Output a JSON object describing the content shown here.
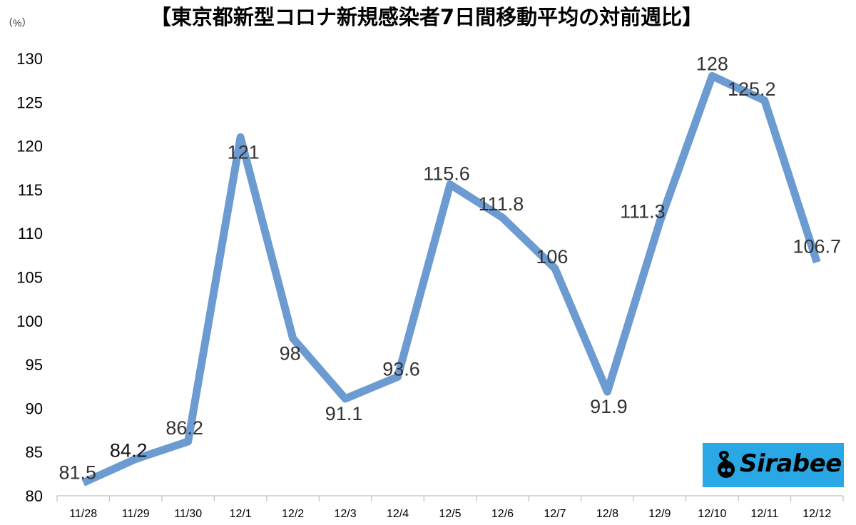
{
  "chart_data": {
    "type": "line",
    "title": "【東京都新型コロナ新規感染者7日間移動平均の対前週比】",
    "unit_label": "（%）",
    "categories": [
      "11/28",
      "11/29",
      "11/30",
      "12/1",
      "12/2",
      "12/3",
      "12/4",
      "12/5",
      "12/6",
      "12/7",
      "12/8",
      "12/9",
      "12/10",
      "12/11",
      "12/12"
    ],
    "series": [
      {
        "values": [
          81.5,
          84.2,
          86.2,
          121,
          98,
          91.1,
          93.6,
          115.6,
          111.8,
          106,
          91.9,
          111.3,
          128,
          125.2,
          106.7
        ],
        "labels": [
          "81.5",
          "84.2",
          "86.2",
          "121",
          "98",
          "91.1",
          "93.6",
          "115.6",
          "111.8",
          "106",
          "91.9",
          "111.3",
          "128",
          "125.2",
          "106.7"
        ],
        "color": "#6c9bd2"
      }
    ],
    "ylim": [
      80,
      130
    ],
    "yticks": [
      80,
      85,
      90,
      95,
      100,
      105,
      110,
      115,
      120,
      125,
      130
    ],
    "xlabel": "",
    "ylabel": "",
    "grid": false,
    "legend": "none"
  },
  "logo": {
    "text": "Sirabee",
    "icon": "sirabee-logo-icon",
    "background": "#2aa8e6"
  }
}
